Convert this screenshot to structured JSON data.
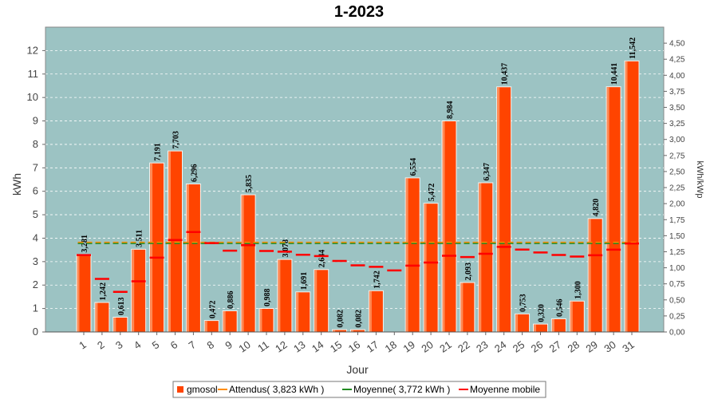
{
  "chart_data": {
    "type": "bar",
    "title": "1-2023",
    "xlabel": "Jour",
    "ylabel": "kWh",
    "y2label": "kWh/kWp",
    "ylim": [
      0,
      13
    ],
    "yticks": [
      0,
      1,
      2,
      3,
      4,
      5,
      6,
      7,
      8,
      9,
      10,
      11,
      12
    ],
    "y2lim": [
      0,
      4.75
    ],
    "y2ticks": [
      "0,00",
      "0,25",
      "0,50",
      "0,75",
      "1,00",
      "1,25",
      "1,50",
      "1,75",
      "2,00",
      "2,25",
      "2,50",
      "2,75",
      "3,00",
      "3,25",
      "3,50",
      "3,75",
      "4,00",
      "4,25",
      "4,50"
    ],
    "grid": true,
    "legend_position": "bottom",
    "categories": [
      "1",
      "2",
      "3",
      "4",
      "5",
      "6",
      "7",
      "8",
      "9",
      "10",
      "11",
      "12",
      "13",
      "14",
      "15",
      "16",
      "17",
      "18",
      "19",
      "20",
      "21",
      "22",
      "23",
      "24",
      "25",
      "26",
      "27",
      "28",
      "29",
      "30",
      "31"
    ],
    "series": [
      {
        "name": "gmosol",
        "color": "#ff4400",
        "values": [
          3.281,
          1.242,
          0.613,
          3.511,
          7.191,
          7.703,
          6.296,
          0.472,
          0.886,
          5.835,
          0.988,
          3.078,
          1.691,
          2.644,
          0.082,
          0.082,
          1.742,
          null,
          6.554,
          5.472,
          8.984,
          2.093,
          6.347,
          10.437,
          0.753,
          0.32,
          0.546,
          1.3,
          4.82,
          10.441,
          11.542
        ],
        "labels": [
          "3,281",
          "1,242",
          "0,613",
          "3,511",
          "7,191",
          "7,703",
          "6,296",
          "0,472",
          "0,886",
          "5,835",
          "0,988",
          "3,078",
          "1,691",
          "2,644",
          "0,082",
          "0,082",
          "1,742",
          "",
          "6,554",
          "5,472",
          "8,984",
          "2,093",
          "6,347",
          "10,437",
          "0,753",
          "0,320",
          "0,546",
          "1,300",
          "4,820",
          "10,441",
          "11,542"
        ]
      },
      {
        "name": "Attendus( 3,823 kWh )",
        "color": "#ff8c00",
        "value": 3.823
      },
      {
        "name": "Moyenne( 3,772 kWh )",
        "color": "#228b22",
        "value": 3.772
      },
      {
        "name": "Moyenne mobile",
        "color": "#ff0000",
        "values": [
          3.281,
          2.262,
          1.712,
          2.162,
          3.168,
          3.924,
          4.263,
          3.789,
          3.466,
          3.703,
          3.456,
          3.425,
          3.292,
          3.237,
          3.027,
          2.843,
          2.778,
          2.624,
          2.83,
          2.962,
          3.248,
          3.196,
          3.333,
          3.629,
          3.514,
          3.391,
          3.286,
          3.215,
          3.271,
          3.51,
          3.772
        ]
      }
    ]
  },
  "legend": {
    "items": [
      {
        "label": "gmosol",
        "color": "#ff4400",
        "kind": "box"
      },
      {
        "label": "Attendus( 3,823 kWh )",
        "color": "#ff8c00",
        "kind": "line"
      },
      {
        "label": "Moyenne( 3,772 kWh )",
        "color": "#228b22",
        "kind": "line"
      },
      {
        "label": "Moyenne mobile",
        "color": "#ff0000",
        "kind": "line"
      }
    ]
  }
}
